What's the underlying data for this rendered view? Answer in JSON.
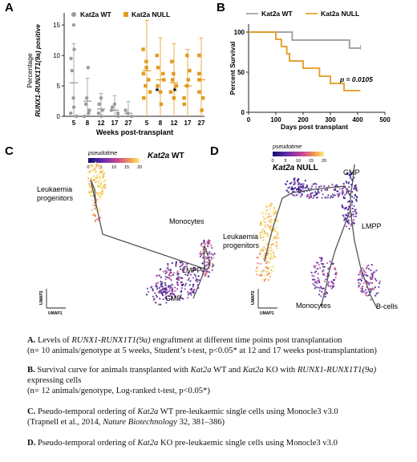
{
  "panels": {
    "A": {
      "letter": "A",
      "legend": [
        {
          "name": "Kat2a WT",
          "color": "#9a9a9a"
        },
        {
          "name": "Kat2a NULL",
          "color": "#e39a1e"
        }
      ],
      "ylabel_line1": "Percentage",
      "ylabel_line2": "RUNX1-RUNX1T1(9a) positive",
      "xlabel": "Weeks post-transplant",
      "y_ticks": [
        "0",
        "5",
        "10",
        "15"
      ],
      "x_ticks": [
        "5",
        "8",
        "12",
        "17",
        "27",
        "5",
        "8",
        "12",
        "17",
        "27"
      ],
      "star": "*"
    },
    "B": {
      "letter": "B",
      "legend": [
        {
          "name": "Kat2a WT",
          "color": "#9a9a9a"
        },
        {
          "name": "Kat2a NULL",
          "color": "#e39a1e"
        }
      ],
      "ylabel": "Percent Survival",
      "xlabel": "Days post transplant",
      "y_ticks": [
        "0",
        "50",
        "100"
      ],
      "x_ticks": [
        "0",
        "100",
        "200",
        "300",
        "400",
        "500"
      ],
      "pvalue": "p = 0.0105"
    },
    "C": {
      "letter": "C",
      "title_gene": "Kat2a",
      "title_rest": " WT",
      "colorbar_label": "pseudotime",
      "colorbar_ticks": [
        "0",
        "5",
        "10",
        "15",
        "20"
      ],
      "labels": {
        "leuk1": "Leukaemia",
        "leuk2": "progenitors",
        "mono": "Monocytes",
        "lmpp": "LMPP",
        "gmp": "GMP"
      },
      "umap1": "UMAP1",
      "umap2": "UMAP2"
    },
    "D": {
      "letter": "D",
      "title_gene": "Kat2a",
      "title_rest": " NULL",
      "colorbar_label": "pseudotime",
      "colorbar_ticks": [
        "0",
        "5",
        "10",
        "15",
        "20"
      ],
      "labels": {
        "gmp": "GMP",
        "lmpp": "LMPP",
        "leuk1": "Leukaemia",
        "leuk2": "progenitors",
        "mono": "Monocytes",
        "bcells": "B-cells"
      },
      "umap1": "UMAP1",
      "umap2": "UMAP2"
    }
  },
  "chart_data": [
    {
      "type": "scatter",
      "panel": "A",
      "ylabel": "Percentage RUNX1-RUNX1T1(9a) positive",
      "xlabel": "Weeks post-transplant",
      "ylim": [
        0,
        17
      ],
      "categories": [
        "5",
        "8",
        "12",
        "17",
        "27",
        "5",
        "8",
        "12",
        "17",
        "27"
      ],
      "series": [
        {
          "name": "Kat2a WT",
          "points": [
            [
              0,
              15
            ],
            [
              0,
              11
            ],
            [
              0,
              9.5
            ],
            [
              0,
              7.5
            ],
            [
              0,
              3
            ],
            [
              0,
              1.5
            ],
            [
              0,
              0.5
            ],
            [
              0,
              0
            ],
            [
              1,
              8
            ],
            [
              1,
              3
            ],
            [
              1,
              2
            ],
            [
              1,
              1
            ],
            [
              1,
              0.5
            ],
            [
              1,
              0
            ],
            [
              2,
              3
            ],
            [
              2,
              2
            ],
            [
              2,
              1
            ],
            [
              2,
              0.5
            ],
            [
              2,
              0
            ],
            [
              3,
              2
            ],
            [
              3,
              1.5
            ],
            [
              3,
              1
            ],
            [
              3,
              0.5
            ],
            [
              3,
              0
            ],
            [
              4,
              1
            ],
            [
              4,
              0.5
            ],
            [
              4,
              0
            ]
          ],
          "means": [
            5.5,
            2.5,
            1.2,
            1.0,
            0.5
          ]
        },
        {
          "name": "Kat2a NULL",
          "points": [
            [
              5,
              11
            ],
            [
              5,
              9
            ],
            [
              5,
              8
            ],
            [
              5,
              7
            ],
            [
              5,
              6
            ],
            [
              5,
              5
            ],
            [
              5,
              4
            ],
            [
              5,
              3
            ],
            [
              6,
              10
            ],
            [
              6,
              8
            ],
            [
              6,
              7
            ],
            [
              6,
              6
            ],
            [
              6,
              5
            ],
            [
              6,
              4
            ],
            [
              6,
              2
            ],
            [
              7,
              9
            ],
            [
              7,
              7
            ],
            [
              7,
              6
            ],
            [
              7,
              5
            ],
            [
              7,
              4
            ],
            [
              7,
              3
            ],
            [
              8,
              10
            ],
            [
              8,
              7.5
            ],
            [
              8,
              6
            ],
            [
              8,
              5
            ],
            [
              8,
              3
            ],
            [
              8,
              2
            ],
            [
              9,
              10
            ],
            [
              9,
              7
            ],
            [
              9,
              6
            ],
            [
              9,
              4
            ],
            [
              9,
              3
            ],
            [
              9,
              1
            ]
          ],
          "means": [
            7.5,
            6.0,
            5.5,
            5.0,
            6.0
          ]
        }
      ],
      "annotations": [
        {
          "text": "*",
          "category_index": 7
        },
        {
          "text": "*",
          "category_index": 8
        }
      ]
    },
    {
      "type": "line",
      "panel": "B",
      "ylabel": "Percent Survival",
      "xlabel": "Days post transplant",
      "xlim": [
        0,
        500
      ],
      "ylim": [
        0,
        110
      ],
      "series": [
        {
          "name": "Kat2a WT",
          "steps": [
            [
              0,
              100
            ],
            [
              160,
              100
            ],
            [
              160,
              90
            ],
            [
              370,
              90
            ],
            [
              370,
              80
            ],
            [
              410,
              80
            ]
          ]
        },
        {
          "name": "Kat2a NULL",
          "steps": [
            [
              0,
              100
            ],
            [
              100,
              100
            ],
            [
              100,
              91
            ],
            [
              120,
              91
            ],
            [
              120,
              82
            ],
            [
              140,
              82
            ],
            [
              140,
              73
            ],
            [
              150,
              73
            ],
            [
              150,
              64
            ],
            [
              200,
              64
            ],
            [
              200,
              55
            ],
            [
              260,
              55
            ],
            [
              260,
              45
            ],
            [
              300,
              45
            ],
            [
              300,
              36
            ],
            [
              350,
              36
            ],
            [
              350,
              27
            ],
            [
              410,
              27
            ]
          ]
        }
      ],
      "annotations": [
        {
          "text": "p = 0.0105"
        }
      ]
    }
  ],
  "captions": {
    "a1_bold": "A.",
    "a1_pre": " Levels of ",
    "a1_gene": "RUNX1-RUNX1T1(9a)",
    "a1_post": " engraftment at different time points post transplantation",
    "a2": "(n= 10 animals/genotype at 5 weeks, Student’s t-test, p<0.05* at 12 and 17 weeks post-transplantation)",
    "b1_bold": "B.",
    "b1_pre": " Survival curve for animals transplanted with ",
    "b1_g1": "Kat2a",
    "b1_mid": " WT and ",
    "b1_g2": "Kat2a",
    "b1_mid2": " KO with ",
    "b1_g3": "RUNX1-RUNX1T1(9a)",
    "b2": "expressing cells",
    "b3": "(n= 12 animals/genotype, Log-ranked t-test, p<0.05*)",
    "c1_bold": "C.",
    "c1_pre": " Pseudo-temporal ordering of ",
    "c1_gene": "Kat2a",
    "c1_post": " WT pre-leukaemic single cells using Monocle3 v3.0",
    "c2_pre": "(Trapnell et al., 2014, ",
    "c2_journal": "Nature Biotechnology",
    "c2_post": " 32, 381–386)",
    "d1_bold": "D.",
    "d1_pre": " Pseudo-temporal ordering of ",
    "d1_gene": "Kat2a",
    "d1_post": " KO pre-leukaemic single cells using Monocle3 v3.0"
  }
}
